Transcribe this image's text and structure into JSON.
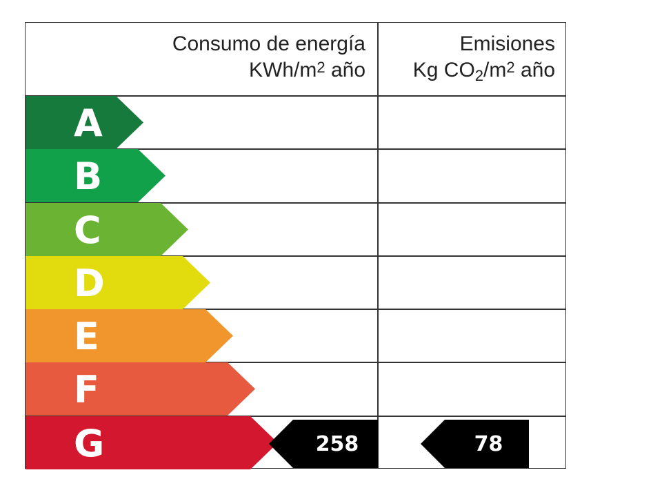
{
  "header": {
    "energy_line1": "Consumo de energía",
    "energy_line2_a": "KWh/m",
    "energy_line2_sup": "2",
    "energy_line2_b": " año",
    "emissions_line1": "Emisiones",
    "emissions_line2_a": "Kg CO",
    "emissions_line2_sub": "2",
    "emissions_line2_b": "/m",
    "emissions_line2_sup": "2",
    "emissions_line2_c": " año"
  },
  "ratings": [
    {
      "letter": "A",
      "color": "#177a3d"
    },
    {
      "letter": "B",
      "color": "#10a14a"
    },
    {
      "letter": "C",
      "color": "#6bb433"
    },
    {
      "letter": "D",
      "color": "#e2dc0e"
    },
    {
      "letter": "E",
      "color": "#f0962c"
    },
    {
      "letter": "F",
      "color": "#e85a3f"
    },
    {
      "letter": "G",
      "color": "#d3172e"
    }
  ],
  "current": {
    "rating": "G",
    "energy_value": "258",
    "emissions_value": "78",
    "marker_color": "#000000"
  }
}
